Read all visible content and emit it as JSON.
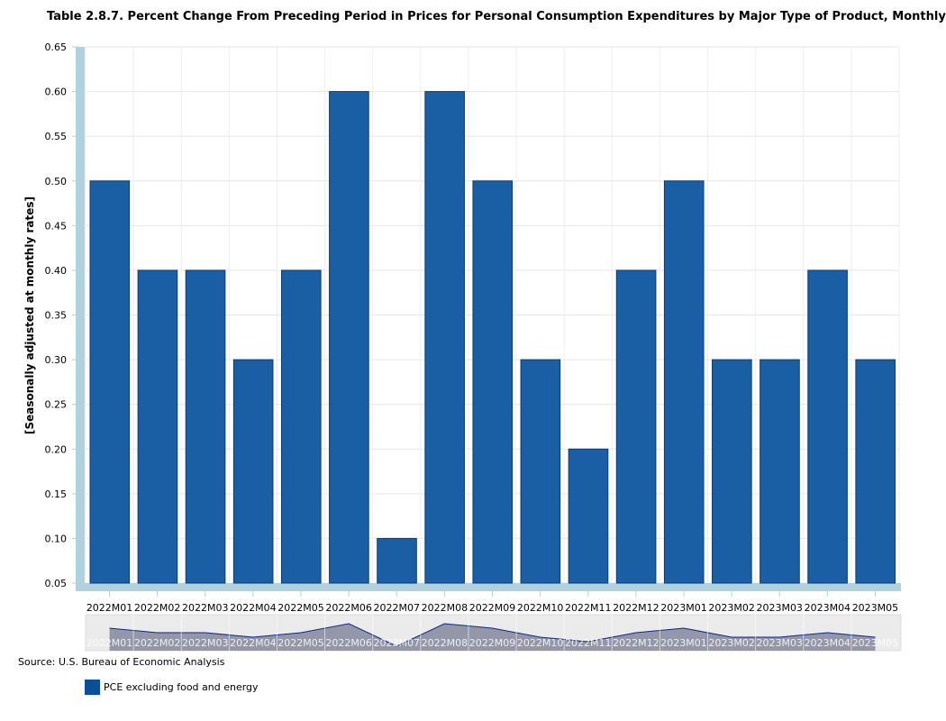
{
  "chart_data": {
    "type": "bar",
    "title": "Table 2.8.7. Percent Change From Preceding Period in Prices for Personal Consumption Expenditures by Major Type of Product, Monthly",
    "ylabel": "[Seasonally adjusted at monthly rates]",
    "xlabel": "",
    "ylim": [
      0.05,
      0.65
    ],
    "yticks": [
      "0.05",
      "0.10",
      "0.15",
      "0.20",
      "0.25",
      "0.30",
      "0.35",
      "0.40",
      "0.45",
      "0.50",
      "0.55",
      "0.60",
      "0.65"
    ],
    "grid": true,
    "categories": [
      "2022M01",
      "2022M02",
      "2022M03",
      "2022M04",
      "2022M05",
      "2022M06",
      "2022M07",
      "2022M08",
      "2022M09",
      "2022M10",
      "2022M11",
      "2022M12",
      "2023M01",
      "2023M02",
      "2023M03",
      "2023M04",
      "2023M05"
    ],
    "series": [
      {
        "name": "PCE excluding food and energy",
        "values": [
          0.5,
          0.4,
          0.4,
          0.3,
          0.4,
          0.6,
          0.1,
          0.6,
          0.5,
          0.3,
          0.2,
          0.4,
          0.5,
          0.3,
          0.3,
          0.4,
          0.3
        ]
      }
    ],
    "legend_position": "bottom-left",
    "colors": {
      "bar": "#1a5ea3",
      "bar_stroke": "#0a3c7a",
      "axis_band": "#aed3de",
      "navigator_bg": "#ebebeb",
      "navigator_fill": "#9497a8"
    }
  },
  "source": "Source: U.S. Bureau of Economic Analysis"
}
